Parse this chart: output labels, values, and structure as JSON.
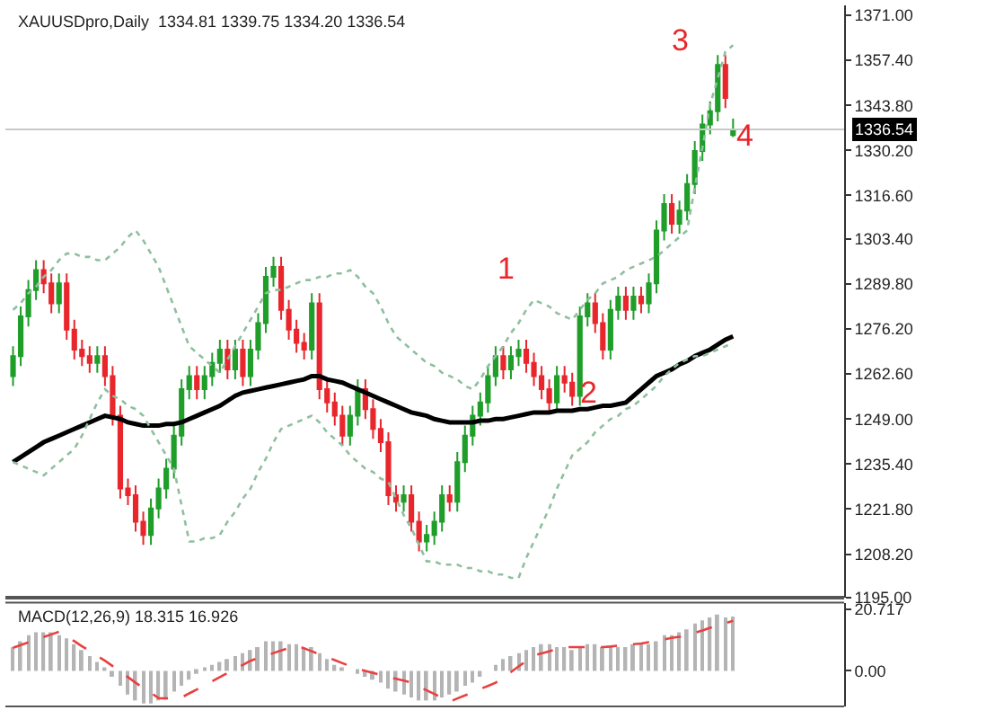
{
  "chart_data": [
    {
      "type": "candlestick",
      "title": "XAUUSDpro,Daily  1334.81 1339.75 1334.20 1336.54",
      "categories": [
        null,
        null,
        null,
        null,
        null,
        null,
        null,
        null,
        null,
        null,
        null,
        null,
        null,
        null,
        null,
        null,
        null,
        null,
        null,
        null,
        null,
        null,
        null,
        null,
        null,
        null,
        null,
        null,
        null,
        null,
        null,
        null,
        null,
        null,
        null,
        null,
        null,
        null,
        null,
        null,
        null,
        null,
        null,
        null,
        null,
        null,
        null,
        null,
        null,
        null,
        null,
        null,
        null,
        null,
        null,
        null,
        null,
        null,
        null,
        null,
        null,
        null,
        null,
        null,
        null,
        null,
        null,
        null,
        null,
        null,
        null,
        null,
        null,
        null,
        null,
        null,
        null,
        null,
        null,
        null,
        null,
        null,
        null,
        null,
        null,
        null,
        null,
        null,
        null,
        null,
        null,
        null,
        null,
        null,
        null
      ],
      "ohlc": [
        [
          1262,
          1271,
          1259,
          1268
        ],
        [
          1268,
          1283,
          1265,
          1280
        ],
        [
          1280,
          1291,
          1277,
          1288
        ],
        [
          1288,
          1297,
          1285,
          1294
        ],
        [
          1294,
          1297,
          1287,
          1290
        ],
        [
          1290,
          1293,
          1281,
          1284
        ],
        [
          1284,
          1293,
          1281,
          1290
        ],
        [
          1290,
          1293,
          1273,
          1276
        ],
        [
          1276,
          1279,
          1267,
          1270
        ],
        [
          1270,
          1273,
          1265,
          1268
        ],
        [
          1268,
          1271,
          1263,
          1266
        ],
        [
          1266,
          1271,
          1263,
          1268
        ],
        [
          1268,
          1271,
          1259,
          1262
        ],
        [
          1262,
          1265,
          1247,
          1250
        ],
        [
          1250,
          1253,
          1225,
          1228
        ],
        [
          1228,
          1231,
          1223,
          1226
        ],
        [
          1226,
          1229,
          1215,
          1218
        ],
        [
          1218,
          1221,
          1211,
          1214
        ],
        [
          1214,
          1225,
          1211,
          1222
        ],
        [
          1222,
          1231,
          1219,
          1228
        ],
        [
          1228,
          1237,
          1225,
          1234
        ],
        [
          1234,
          1247,
          1231,
          1244
        ],
        [
          1244,
          1261,
          1241,
          1258
        ],
        [
          1258,
          1265,
          1255,
          1262
        ],
        [
          1262,
          1265,
          1255,
          1258
        ],
        [
          1258,
          1265,
          1255,
          1262
        ],
        [
          1262,
          1269,
          1259,
          1266
        ],
        [
          1266,
          1273,
          1263,
          1270
        ],
        [
          1270,
          1273,
          1261,
          1264
        ],
        [
          1264,
          1273,
          1261,
          1270
        ],
        [
          1270,
          1273,
          1259,
          1262
        ],
        [
          1262,
          1273,
          1259,
          1270
        ],
        [
          1270,
          1281,
          1267,
          1278
        ],
        [
          1278,
          1295,
          1275,
          1292
        ],
        [
          1292,
          1298,
          1289,
          1295
        ],
        [
          1295,
          1298,
          1279,
          1282
        ],
        [
          1282,
          1285,
          1273,
          1276
        ],
        [
          1276,
          1279,
          1269,
          1272
        ],
        [
          1272,
          1275,
          1267,
          1270
        ],
        [
          1270,
          1287,
          1267,
          1284
        ],
        [
          1284,
          1287,
          1255,
          1258
        ],
        [
          1258,
          1261,
          1251,
          1254
        ],
        [
          1254,
          1257,
          1247,
          1250
        ],
        [
          1250,
          1253,
          1241,
          1244
        ],
        [
          1244,
          1253,
          1241,
          1250
        ],
        [
          1250,
          1261,
          1247,
          1258
        ],
        [
          1258,
          1261,
          1249,
          1252
        ],
        [
          1252,
          1255,
          1243,
          1246
        ],
        [
          1246,
          1249,
          1239,
          1242
        ],
        [
          1242,
          1245,
          1223,
          1226
        ],
        [
          1226,
          1229,
          1221,
          1224
        ],
        [
          1224,
          1229,
          1221,
          1226
        ],
        [
          1226,
          1229,
          1215,
          1218
        ],
        [
          1218,
          1221,
          1209,
          1212
        ],
        [
          1212,
          1217,
          1209,
          1214
        ],
        [
          1214,
          1221,
          1211,
          1218
        ],
        [
          1218,
          1229,
          1215,
          1226
        ],
        [
          1226,
          1229,
          1221,
          1224
        ],
        [
          1224,
          1239,
          1221,
          1236
        ],
        [
          1236,
          1247,
          1233,
          1244
        ],
        [
          1244,
          1253,
          1241,
          1250
        ],
        [
          1250,
          1257,
          1247,
          1254
        ],
        [
          1254,
          1265,
          1251,
          1262
        ],
        [
          1262,
          1271,
          1259,
          1268
        ],
        [
          1268,
          1271,
          1261,
          1264
        ],
        [
          1264,
          1271,
          1261,
          1268
        ],
        [
          1268,
          1273,
          1265,
          1270
        ],
        [
          1270,
          1273,
          1263,
          1266
        ],
        [
          1266,
          1269,
          1259,
          1262
        ],
        [
          1262,
          1265,
          1255,
          1258
        ],
        [
          1258,
          1261,
          1251,
          1254
        ],
        [
          1254,
          1265,
          1251,
          1262
        ],
        [
          1262,
          1265,
          1257,
          1260
        ],
        [
          1260,
          1263,
          1253,
          1256
        ],
        [
          1256,
          1283,
          1253,
          1280
        ],
        [
          1280,
          1287,
          1277,
          1284
        ],
        [
          1284,
          1287,
          1275,
          1278
        ],
        [
          1278,
          1281,
          1267,
          1270
        ],
        [
          1270,
          1285,
          1267,
          1282
        ],
        [
          1282,
          1289,
          1279,
          1286
        ],
        [
          1286,
          1289,
          1279,
          1282
        ],
        [
          1282,
          1289,
          1279,
          1286
        ],
        [
          1286,
          1289,
          1281,
          1284
        ],
        [
          1284,
          1293,
          1281,
          1290
        ],
        [
          1290,
          1309,
          1287,
          1306
        ],
        [
          1306,
          1317,
          1303,
          1314
        ],
        [
          1314,
          1317,
          1305,
          1308
        ],
        [
          1308,
          1315,
          1305,
          1312
        ],
        [
          1312,
          1323,
          1309,
          1320
        ],
        [
          1320,
          1333,
          1317,
          1330
        ],
        [
          1330,
          1341,
          1327,
          1338
        ],
        [
          1338,
          1345,
          1335,
          1342
        ],
        [
          1342,
          1359,
          1339,
          1356
        ],
        [
          1356,
          1359,
          1343,
          1346
        ],
        [
          1334.81,
          1339.75,
          1334.2,
          1336.54
        ]
      ],
      "series": [
        {
          "type": "line",
          "color": "#000000",
          "line_style": "solid",
          "values": [
            1236,
            1237.5,
            1239,
            1240.5,
            1242,
            1243,
            1244,
            1245,
            1246,
            1247,
            1248,
            1249,
            1250,
            1249.5,
            1249,
            1248,
            1247.5,
            1247,
            1247,
            1247,
            1247.5,
            1247.5,
            1248,
            1249,
            1250,
            1251,
            1252,
            1253,
            1254.5,
            1256,
            1257,
            1257.5,
            1258,
            1258.5,
            1259,
            1259.5,
            1260,
            1260.5,
            1261,
            1262,
            1262,
            1261,
            1260.5,
            1260,
            1259,
            1258,
            1257,
            1256,
            1255,
            1254,
            1253,
            1252,
            1251,
            1250.5,
            1250,
            1249,
            1248.5,
            1248,
            1248,
            1248,
            1248,
            1248.5,
            1248.5,
            1249,
            1249,
            1249.5,
            1250,
            1250.5,
            1251,
            1251,
            1251,
            1251.5,
            1251.5,
            1251.5,
            1252,
            1252,
            1252.5,
            1253,
            1253,
            1253.5,
            1254,
            1256,
            1258,
            1260,
            1262,
            1263,
            1264,
            1265.5,
            1266.5,
            1268,
            1269,
            1270,
            1271.5,
            1273,
            1274
          ]
        },
        {
          "type": "line",
          "color": "#8fbf9f",
          "line_style": "dotted",
          "values": [
            1282,
            1284,
            1287,
            1289,
            1292,
            1294,
            1297,
            1299,
            1299,
            1298,
            1298,
            1297,
            1297,
            1299,
            1301,
            1304,
            1306,
            1303,
            1299,
            1295,
            1289,
            1283,
            1277,
            1271,
            1269,
            1267,
            1265,
            1263,
            1267,
            1271,
            1275,
            1279,
            1283,
            1287,
            1288,
            1288,
            1289,
            1290,
            1291,
            1291,
            1292,
            1292,
            1293,
            1293,
            1294,
            1292,
            1289,
            1287,
            1283,
            1278,
            1274,
            1272,
            1270,
            1268,
            1266,
            1265,
            1263,
            1262,
            1261,
            1259,
            1258,
            1261,
            1265,
            1268,
            1271,
            1275,
            1278,
            1282,
            1285,
            1284,
            1283,
            1281,
            1280,
            1279,
            1282,
            1285,
            1287,
            1290,
            1291,
            1292,
            1294,
            1295,
            1296,
            1297,
            1298,
            1300,
            1302,
            1304,
            1306,
            1319,
            1331,
            1344,
            1352,
            1360,
            1362
          ]
        },
        {
          "type": "line",
          "color": "#8fbf9f",
          "line_style": "dotted",
          "values": [
            1236,
            1235,
            1234,
            1233,
            1232,
            1234,
            1236,
            1238,
            1240,
            1244,
            1249,
            1254,
            1258,
            1256,
            1255,
            1253,
            1252,
            1250,
            1246,
            1242,
            1238,
            1234,
            1223,
            1212,
            1212,
            1213,
            1213,
            1214,
            1218,
            1221,
            1225,
            1228,
            1233,
            1237,
            1242,
            1246,
            1247,
            1248,
            1249,
            1250,
            1248,
            1245,
            1243,
            1241,
            1238,
            1236,
            1234,
            1233,
            1231,
            1230,
            1225,
            1220,
            1216,
            1211,
            1206,
            1206,
            1205,
            1205,
            1205,
            1204,
            1204,
            1203,
            1203,
            1202,
            1202,
            1201,
            1201,
            1207,
            1212,
            1217,
            1222,
            1228,
            1233,
            1238,
            1240,
            1242,
            1245,
            1247,
            1249,
            1250,
            1252,
            1253,
            1255,
            1257,
            1259,
            1262,
            1264,
            1266,
            1267,
            1268,
            1268,
            1269,
            1270,
            1271,
            1272
          ]
        }
      ],
      "ylim": [
        1195,
        1374
      ],
      "yticks": [
        {
          "value": 1195,
          "label": "1195.00"
        },
        {
          "value": 1208.2,
          "label": "1208.20"
        },
        {
          "value": 1221.8,
          "label": "1221.80"
        },
        {
          "value": 1235.4,
          "label": "1235.40"
        },
        {
          "value": 1249,
          "label": "1249.00"
        },
        {
          "value": 1262.6,
          "label": "1262.60"
        },
        {
          "value": 1276.2,
          "label": "1276.20"
        },
        {
          "value": 1289.8,
          "label": "1289.80"
        },
        {
          "value": 1303.4,
          "label": "1303.40"
        },
        {
          "value": 1316.6,
          "label": "1316.60"
        },
        {
          "value": 1330.2,
          "label": "1330.20"
        },
        {
          "value": 1343.8,
          "label": "1343.80"
        },
        {
          "value": 1357.4,
          "label": "1357.40"
        },
        {
          "value": 1371,
          "label": "1371.00"
        }
      ],
      "ref_lines": [
        {
          "axis": "y",
          "value": 1336.54,
          "label": "1336.54",
          "color": "#c8c8c8"
        }
      ],
      "annotations": [
        "1",
        "2",
        "3",
        "4"
      ],
      "tick_labels": "y"
    },
    {
      "type": "bar",
      "title": "MACD(12,26,9) 18.315 16.926",
      "categories": [
        null,
        null,
        null,
        null,
        null,
        null,
        null,
        null,
        null,
        null,
        null,
        null,
        null,
        null,
        null,
        null,
        null,
        null,
        null,
        null,
        null,
        null,
        null,
        null,
        null,
        null,
        null,
        null,
        null,
        null,
        null,
        null,
        null,
        null,
        null,
        null,
        null,
        null,
        null,
        null,
        null,
        null,
        null,
        null,
        null,
        null,
        null,
        null,
        null,
        null,
        null,
        null,
        null,
        null,
        null,
        null,
        null,
        null,
        null,
        null,
        null,
        null,
        null,
        null,
        null,
        null,
        null,
        null,
        null,
        null,
        null,
        null,
        null,
        null,
        null,
        null,
        null,
        null,
        null,
        null,
        null,
        null,
        null,
        null,
        null,
        null,
        null,
        null,
        null,
        null,
        null,
        null,
        null,
        null,
        null
      ],
      "series": [
        {
          "type": "bar",
          "color": "#b4b4b4",
          "values": [
            8,
            10,
            12,
            13,
            13,
            13,
            12,
            11,
            9,
            7,
            5,
            3,
            1,
            -2,
            -5,
            -8,
            -10,
            -11,
            -11,
            -10,
            -9,
            -7,
            -5,
            -3,
            -1,
            1,
            2,
            3,
            4,
            5,
            6,
            7,
            8,
            10,
            10,
            10,
            9,
            9,
            8,
            8,
            6,
            4,
            2,
            1,
            0,
            -1,
            -2,
            -3,
            -4,
            -6,
            -7,
            -8,
            -9,
            -10,
            -10,
            -10,
            -9,
            -8,
            -7,
            -5,
            -4,
            -2,
            0,
            2,
            4,
            5,
            6,
            7,
            8,
            9,
            9,
            8,
            8,
            7,
            8,
            9,
            9,
            8,
            8,
            8,
            8,
            9,
            9,
            9,
            10,
            12,
            12,
            13,
            14,
            16,
            17,
            18,
            19,
            18,
            18.3
          ]
        },
        {
          "type": "line",
          "color": "#e84040",
          "line_style": "dashed",
          "values": [
            7.8,
            8.7,
            9.6,
            10.5,
            11.4,
            12.3,
            13.2,
            11.6,
            10,
            8.3,
            6.7,
            5,
            3.4,
            1.6,
            -0.3,
            -2.1,
            -4,
            -5.8,
            -7.4,
            -9.2,
            -9.3,
            -9.2,
            -9,
            -7.6,
            -6.3,
            -4.9,
            -3.5,
            -2.1,
            -0.7,
            0.7,
            2,
            3.4,
            4.3,
            5.1,
            6,
            6.9,
            7.7,
            8.6,
            7.6,
            6.6,
            5.6,
            4.6,
            3.6,
            2.6,
            1.6,
            0.6,
            0,
            -0.7,
            -1.4,
            -2,
            -2.7,
            -3.3,
            -4,
            -5.3,
            -6.6,
            -7.8,
            -9.1,
            -10.4,
            -9.3,
            -8.3,
            -7.2,
            -6.1,
            -5.1,
            -4,
            -2.2,
            -0.4,
            1.5,
            3.3,
            5.2,
            5.9,
            6.6,
            7.3,
            8,
            8,
            8,
            8,
            8,
            8,
            8.2,
            8.5,
            8.7,
            9,
            9.2,
            9.7,
            10.1,
            10.6,
            11.1,
            11.5,
            12,
            12.8,
            13.6,
            14.5,
            15.3,
            16.1,
            16.9
          ]
        }
      ],
      "ylim": [
        -12,
        23
      ],
      "yticks": [
        {
          "value": 20.717,
          "label": "20.717"
        },
        {
          "value": 0,
          "label": "0.00"
        }
      ],
      "tick_labels": "y"
    }
  ]
}
